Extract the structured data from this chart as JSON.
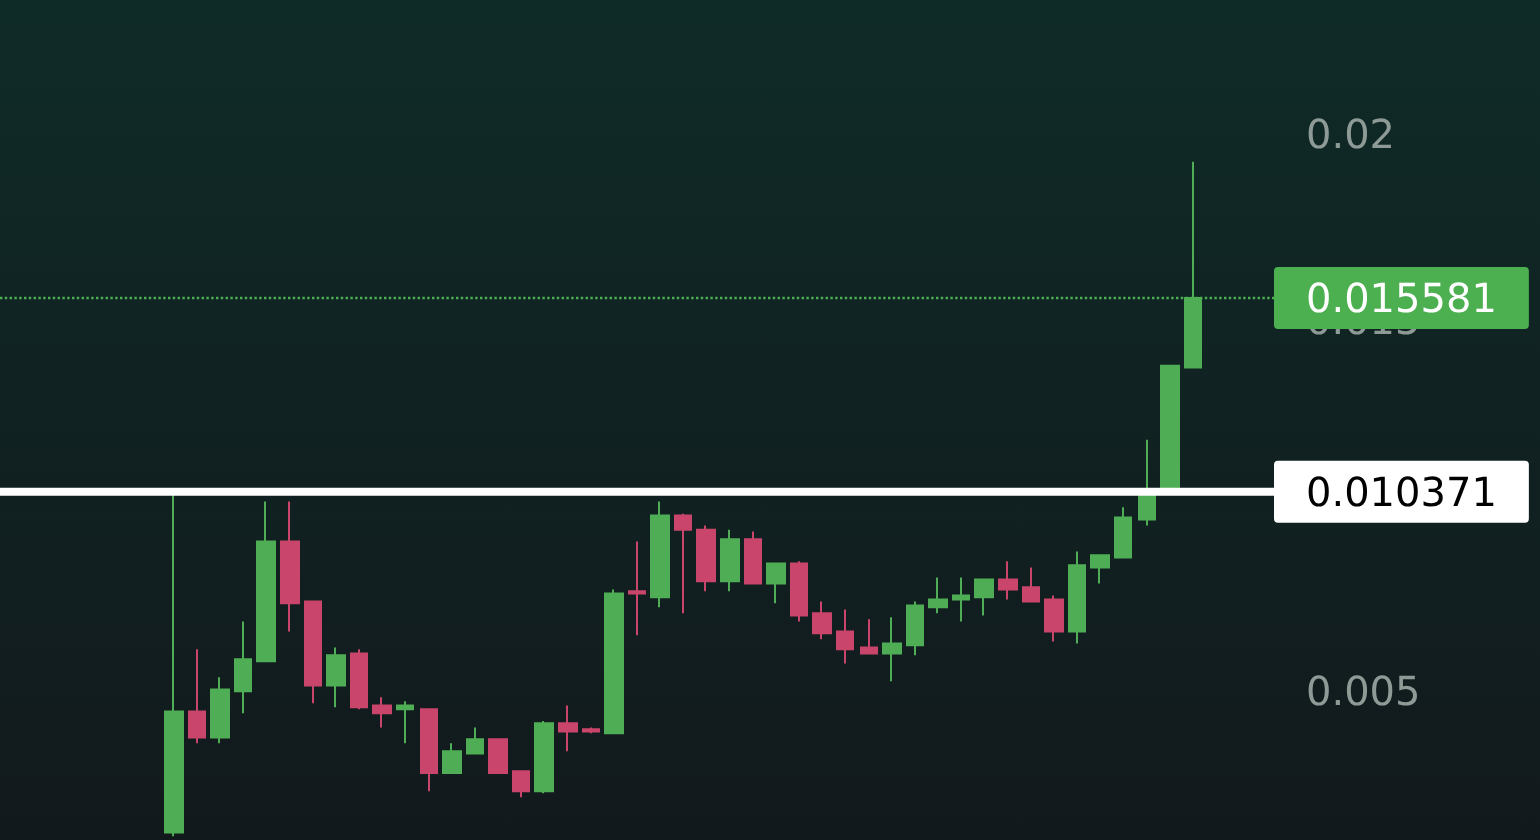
{
  "chart_data": {
    "type": "candlestick",
    "categories": [
      null,
      null,
      null,
      null,
      null,
      null,
      null,
      null,
      null,
      null,
      null,
      null,
      null,
      null,
      null,
      null,
      null,
      null,
      null,
      null,
      null,
      null,
      null,
      null,
      null,
      null,
      null,
      null,
      null,
      null,
      null,
      null,
      null,
      null,
      null,
      null,
      null,
      null,
      null,
      null,
      null,
      null,
      null,
      null,
      null,
      null,
      null,
      null,
      null,
      null,
      null,
      null,
      null,
      null,
      null
    ],
    "ohlc": [
      null,
      null,
      null,
      null,
      null,
      null,
      null,
      [
        0.0012,
        0.01038,
        0.0011,
        0.00446
      ],
      [
        0.00446,
        0.00613,
        0.0036,
        0.00376
      ],
      [
        0.00376,
        0.00538,
        0.0036,
        0.00505
      ],
      [
        0.005,
        0.00688,
        0.00441,
        0.00586
      ],
      [
        0.00581,
        0.01011,
        0.0058,
        0.00903
      ],
      [
        0.00903,
        0.01011,
        0.00661,
        0.00737
      ],
      [
        0.00742,
        0.00742,
        0.00468,
        0.00516
      ],
      [
        0.00516,
        0.00618,
        0.00457,
        0.00597
      ],
      [
        0.00602,
        0.00613,
        0.00452,
        0.00457
      ],
      [
        0.00462,
        0.00484,
        0.00403,
        0.00441
      ],
      [
        0.00452,
        0.00473,
        0.0036,
        0.00462
      ],
      [
        0.00452,
        0.00452,
        0.00231,
        0.0028
      ],
      [
        0.0028,
        0.0036,
        0.0028,
        0.00339
      ],
      [
        0.00333,
        0.00403,
        0.00333,
        0.00371
      ],
      [
        0.00371,
        0.00371,
        0.0028,
        0.0028
      ],
      [
        0.00285,
        0.00285,
        0.00215,
        0.00231
      ],
      [
        0.00231,
        0.0042,
        0.00226,
        0.00414
      ],
      [
        0.00414,
        0.00462,
        0.00339,
        0.00392
      ],
      [
        0.00398,
        0.00403,
        0.00387,
        0.00392
      ],
      [
        0.00387,
        0.00774,
        0.00387,
        0.00763
      ],
      [
        0.00769,
        0.00903,
        0.00651,
        0.00763
      ],
      [
        0.00753,
        0.01011,
        0.00726,
        0.00973
      ],
      [
        0.00973,
        0.00978,
        0.0071,
        0.00935
      ],
      [
        0.00935,
        0.00946,
        0.00769,
        0.00796
      ],
      [
        0.00796,
        0.00935,
        0.00769,
        0.00909
      ],
      [
        0.00909,
        0.0093,
        0.0079,
        0.0079
      ],
      [
        0.0079,
        0.00844,
        0.00737,
        0.00844
      ],
      [
        0.00844,
        0.0085,
        0.00688,
        0.00704
      ],
      [
        0.0071,
        0.00742,
        0.0064,
        0.00656
      ],
      [
        0.00661,
        0.0072,
        0.00575,
        0.00613
      ],
      [
        0.00618,
        0.00694,
        0.00602,
        0.00602
      ],
      [
        0.00602,
        0.00699,
        0.00527,
        0.00629
      ],
      [
        0.00624,
        0.00742,
        0.00597,
        0.00731
      ],
      [
        0.00726,
        0.00806,
        0.0071,
        0.00747
      ],
      [
        0.00747,
        0.00806,
        0.00688,
        0.00758
      ],
      [
        0.00753,
        0.00801,
        0.00704,
        0.00801
      ],
      [
        0.00801,
        0.0085,
        0.00747,
        0.00774
      ],
      [
        0.0078,
        0.00833,
        0.00742,
        0.00742
      ],
      [
        0.00747,
        0.00758,
        0.00634,
        0.00661
      ],
      [
        0.00661,
        0.00876,
        0.00629,
        0.00839
      ],
      [
        0.00833,
        0.00866,
        0.0079,
        0.00866
      ],
      [
        0.0086,
        0.00995,
        0.0086,
        0.00968
      ],
      [
        0.00962,
        0.01177,
        0.00946,
        0.01043
      ],
      [
        0.01038,
        0.01376,
        0.01038,
        0.01376
      ],
      [
        0.01371,
        0.01925,
        0.01371,
        0.015581
      ],
      null,
      null,
      null
    ],
    "colors": [
      null,
      null,
      null,
      null,
      null,
      null,
      null,
      "#4fae55",
      "#c9456b",
      "#4fae55",
      "#4fae55",
      "#4fae55",
      "#c9456b",
      "#c9456b",
      "#4fae55",
      "#c9456b",
      "#c9456b",
      "#4fae55",
      "#c9456b",
      "#4fae55",
      "#4fae55",
      "#c9456b",
      "#c9456b",
      "#4fae55",
      "#c9456b",
      "#c9456b",
      "#4fae55",
      "#c9456b",
      "#4fae55",
      "#c9456b",
      "#c9456b",
      "#4fae55",
      "#c9456b",
      "#4fae55",
      "#c9456b",
      "#c9456b",
      "#c9456b",
      "#c9456b",
      "#4fae55",
      "#4fae55",
      "#4fae55",
      "#4fae55",
      "#4fae55",
      "#c9456b",
      "#c9456b",
      "#c9456b",
      "#4fae55",
      "#4fae55",
      "#4fae55",
      "#4fae55",
      "#4fae55",
      "#4fae55",
      null,
      null,
      null
    ],
    "ylim": [
      0.001,
      0.0236
    ],
    "yticks": [
      0.005,
      0.015,
      0.02
    ],
    "tick_labels": "y",
    "grid": false,
    "ref_lines": [
      {
        "axis": "y",
        "value": 0.015581,
        "label": "0.015581",
        "color": "#4caf50",
        "line_style": "dotted"
      },
      {
        "axis": "y",
        "value": 0.010371,
        "label": "0.010371",
        "color": "#ffffff",
        "line_style": "solid"
      }
    ]
  }
}
